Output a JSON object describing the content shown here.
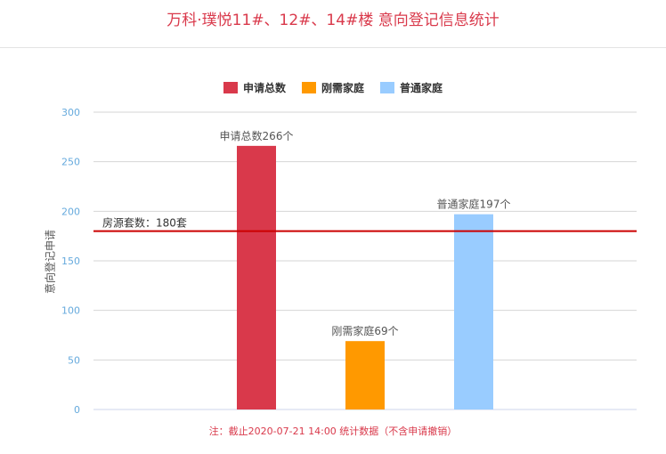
{
  "header": {
    "title": "万科·璞悦11#、12#、14#楼 意向登记信息统计"
  },
  "legend": [
    {
      "label": "申请总数",
      "color": "#d9394b"
    },
    {
      "label": "刚需家庭",
      "color": "#ff9900"
    },
    {
      "label": "普通家庭",
      "color": "#99ccff"
    }
  ],
  "chart_data": {
    "type": "bar",
    "categories": [
      "申请总数",
      "刚需家庭",
      "普通家庭"
    ],
    "values": [
      266,
      69,
      197
    ],
    "bar_labels": [
      "申请总数266个",
      "刚需家庭69个",
      "普通家庭197个"
    ],
    "colors": [
      "#d9394b",
      "#ff9900",
      "#99ccff"
    ],
    "ylabel": "意向登记申请",
    "ylim": [
      0,
      300
    ],
    "yticks": [
      0,
      50,
      100,
      150,
      200,
      250,
      300
    ],
    "grid": true,
    "legend_position": "top-center",
    "reference_line": {
      "value": 180,
      "label": "房源套数：180套",
      "color": "#cc0000"
    }
  },
  "footnote": "注：截止2020-07-21 14:00 统计数据（不含申请撤销）"
}
